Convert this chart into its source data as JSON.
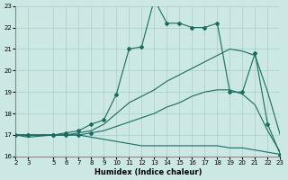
{
  "title": "",
  "xlabel": "Humidex (Indice chaleur)",
  "ylabel": "",
  "bg_color": "#cce8e4",
  "grid_color": "#aacfcb",
  "line_color": "#1a6b5e",
  "xlim": [
    2,
    23
  ],
  "ylim": [
    16,
    23
  ],
  "xticks": [
    2,
    3,
    5,
    6,
    7,
    8,
    9,
    10,
    11,
    12,
    13,
    14,
    15,
    16,
    17,
    18,
    19,
    20,
    21,
    22,
    23
  ],
  "yticks": [
    16,
    17,
    18,
    19,
    20,
    21,
    22,
    23
  ],
  "line1_x": [
    2,
    3,
    5,
    6,
    7,
    8,
    9,
    10,
    11,
    12,
    13,
    14,
    15,
    16,
    17,
    18,
    19,
    20,
    21,
    22,
    23
  ],
  "line1_y": [
    17.0,
    17.0,
    17.0,
    17.1,
    17.2,
    17.5,
    17.7,
    18.9,
    21.0,
    21.1,
    23.3,
    22.2,
    22.2,
    22.0,
    22.0,
    22.2,
    19.0,
    19.0,
    20.8,
    17.5,
    16.1
  ],
  "line2_x": [
    2,
    3,
    5,
    6,
    7,
    8,
    9,
    10,
    11,
    12,
    13,
    14,
    15,
    16,
    17,
    18,
    19,
    20,
    21,
    22,
    23
  ],
  "line2_y": [
    17.0,
    17.0,
    17.0,
    17.0,
    17.1,
    17.2,
    17.5,
    18.0,
    18.5,
    18.8,
    19.1,
    19.5,
    19.8,
    20.1,
    20.4,
    20.7,
    21.0,
    20.9,
    20.7,
    19.0,
    17.0
  ],
  "line3_x": [
    2,
    3,
    5,
    6,
    7,
    8,
    9,
    10,
    11,
    12,
    13,
    14,
    15,
    16,
    17,
    18,
    19,
    20,
    21,
    22,
    23
  ],
  "line3_y": [
    17.0,
    17.0,
    17.0,
    17.0,
    17.0,
    17.1,
    17.2,
    17.4,
    17.6,
    17.8,
    18.0,
    18.3,
    18.5,
    18.8,
    19.0,
    19.1,
    19.1,
    18.9,
    18.4,
    17.2,
    16.2
  ],
  "line4_x": [
    2,
    3,
    5,
    6,
    7,
    8,
    9,
    10,
    11,
    12,
    13,
    14,
    15,
    16,
    17,
    18,
    19,
    20,
    21,
    22,
    23
  ],
  "line4_y": [
    17.0,
    16.9,
    17.0,
    17.0,
    17.0,
    16.9,
    16.8,
    16.7,
    16.6,
    16.5,
    16.5,
    16.5,
    16.5,
    16.5,
    16.5,
    16.5,
    16.4,
    16.4,
    16.3,
    16.2,
    16.1
  ],
  "line1_markers_x": [
    2,
    3,
    5,
    6,
    7,
    8,
    9,
    10,
    11,
    13,
    14,
    15,
    16,
    17,
    18,
    20,
    21
  ],
  "line1_markers_y": [
    17.0,
    17.0,
    17.0,
    17.1,
    17.2,
    17.5,
    17.7,
    18.9,
    21.0,
    23.3,
    22.2,
    22.2,
    22.0,
    22.0,
    22.2,
    19.0,
    20.8
  ]
}
